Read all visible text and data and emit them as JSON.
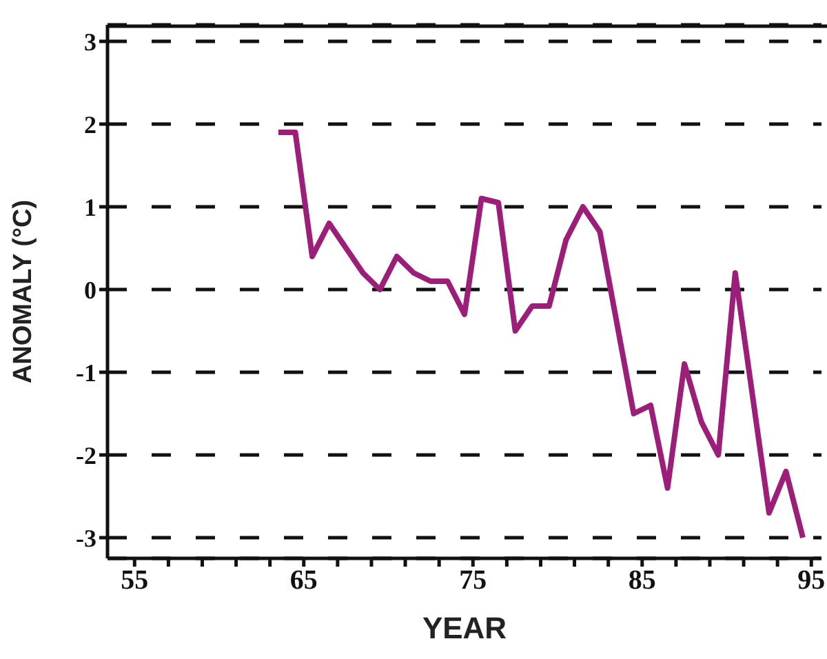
{
  "chart_data": {
    "type": "line",
    "xlabel": "YEAR",
    "ylabel": "ANOMALY (°C)",
    "x": [
      63.5,
      64.5,
      65.5,
      66.5,
      67.5,
      68.5,
      69.5,
      70.5,
      71.5,
      72.5,
      73.5,
      74.5,
      75.5,
      76.5,
      77.5,
      78.5,
      79.5,
      80.5,
      81.5,
      82.5,
      84.5,
      85.5,
      86.5,
      87.5,
      88.5,
      89.5,
      90.5,
      92.5,
      93.5,
      94.5
    ],
    "series": [
      {
        "color": "#9b1f78",
        "values": [
          1.9,
          1.9,
          0.4,
          0.8,
          0.5,
          0.2,
          0.0,
          0.4,
          0.2,
          0.1,
          0.1,
          -0.3,
          1.1,
          1.05,
          -0.5,
          -0.2,
          -0.2,
          0.6,
          1.0,
          0.7,
          -1.5,
          -1.4,
          -2.4,
          -0.9,
          -1.6,
          -2.0,
          0.2,
          -2.7,
          -2.2,
          -3.0
        ]
      }
    ],
    "xlim": [
      53.4,
      95.6
    ],
    "xticks": [
      55,
      {
        "value": 57,
        "label": null
      },
      {
        "value": 59,
        "label": null
      },
      {
        "value": 61,
        "label": null
      },
      {
        "value": 63,
        "label": null
      },
      65,
      {
        "value": 67,
        "label": null
      },
      {
        "value": 69,
        "label": null
      },
      {
        "value": 71,
        "label": null
      },
      {
        "value": 73,
        "label": null
      },
      75,
      {
        "value": 77,
        "label": null
      },
      {
        "value": 79,
        "label": null
      },
      {
        "value": 81,
        "label": null
      },
      {
        "value": 83,
        "label": null
      },
      85,
      {
        "value": 87,
        "label": null
      },
      {
        "value": 89,
        "label": null
      },
      {
        "value": 91,
        "label": null
      },
      {
        "value": 93,
        "label": null
      },
      95
    ],
    "ylim": [
      -3.25,
      3.2
    ],
    "yticks": [
      -3,
      -2,
      -1,
      0,
      1,
      2,
      3
    ],
    "grid": "y",
    "marker": "none",
    "line_style": "solid",
    "legend": false
  }
}
